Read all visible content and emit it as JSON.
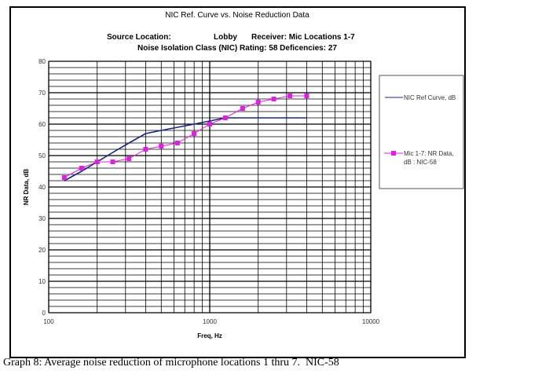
{
  "chart_data": {
    "type": "line",
    "title": "NIC Ref. Curve vs. Noise Reduction  Data",
    "subtitle_line1": {
      "source_label": "Source Location:",
      "source_value": "Lobby",
      "receiver": "Receiver: Mic Locations 1-7"
    },
    "subtitle_line2": "Noise Isolation Class (NIC) Rating: 58  Deficencies: 27",
    "xlabel": "Freq, Hz",
    "ylabel": "NR Data, dB",
    "xscale": "log",
    "xlim": [
      100,
      10000
    ],
    "ylim": [
      0,
      80
    ],
    "xticks": [
      "100",
      "1000",
      "10000"
    ],
    "yticks": [
      "0",
      "10",
      "20",
      "30",
      "40",
      "50",
      "60",
      "70",
      "80"
    ],
    "grid": true,
    "legend_position": "right",
    "x": [
      125,
      160,
      200,
      250,
      315,
      400,
      500,
      630,
      800,
      1000,
      1250,
      1600,
      2000,
      2500,
      3150,
      4000
    ],
    "series": [
      {
        "name": "NIC Ref Curve, dB",
        "color": "#1a237e",
        "marker": "none",
        "values": [
          42,
          45,
          48,
          51,
          54,
          57,
          58,
          59,
          60,
          61,
          62,
          62,
          62,
          62,
          62,
          62
        ]
      },
      {
        "name": "Mic 1-7: NR Data, dB : NIC-58",
        "color": "#e020e0",
        "marker": "square",
        "values": [
          43,
          46,
          48,
          48,
          49,
          52,
          53,
          54,
          57,
          60,
          62,
          65,
          67,
          68,
          69,
          69
        ]
      }
    ]
  },
  "caption": "Graph 8: Average noise reduction of microphone locations 1 thru 7.  NIC-58"
}
